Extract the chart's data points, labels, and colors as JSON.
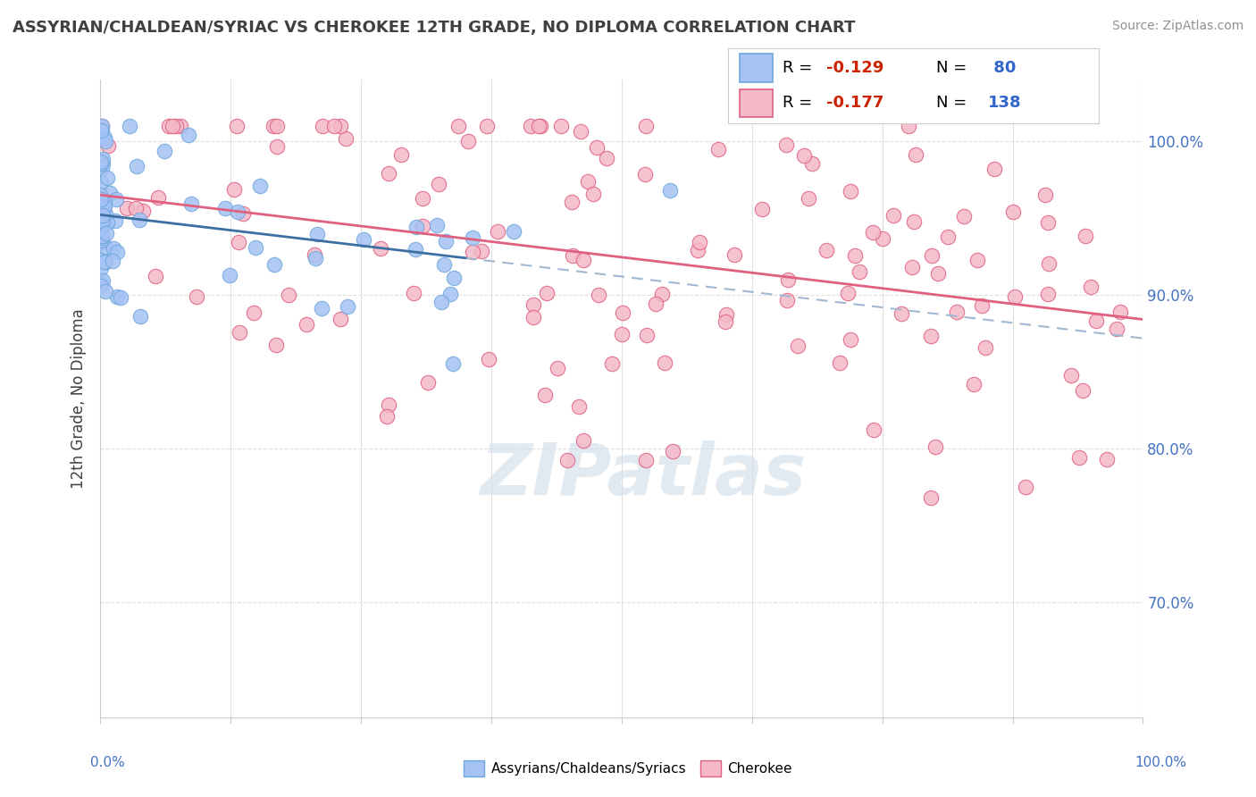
{
  "title": "ASSYRIAN/CHALDEAN/SYRIAC VS CHEROKEE 12TH GRADE, NO DIPLOMA CORRELATION CHART",
  "source": "Source: ZipAtlas.com",
  "ylabel": "12th Grade, No Diploma",
  "y_ticks": [
    "70.0%",
    "80.0%",
    "90.0%",
    "100.0%"
  ],
  "y_tick_vals": [
    0.7,
    0.8,
    0.9,
    1.0
  ],
  "x_lim": [
    0.0,
    1.0
  ],
  "y_lim": [
    0.625,
    1.04
  ],
  "blue_color": "#6fa8dc",
  "pink_color": "#e06080",
  "blue_scatter_color": "#a4c2f4",
  "pink_scatter_color": "#f4b8c8",
  "blue_line_color": "#3d6fa3",
  "pink_line_color": "#e06080",
  "dashed_line_color": "#a0b8d0",
  "watermark_color": "#d0dce8",
  "title_color": "#404040",
  "source_color": "#909090",
  "grid_color": "#e0e0e0",
  "right_tick_color": "#4472c4",
  "blue_r": -0.129,
  "blue_n": 80,
  "pink_r": -0.177,
  "pink_n": 138,
  "seed_blue": 42,
  "seed_pink": 7
}
